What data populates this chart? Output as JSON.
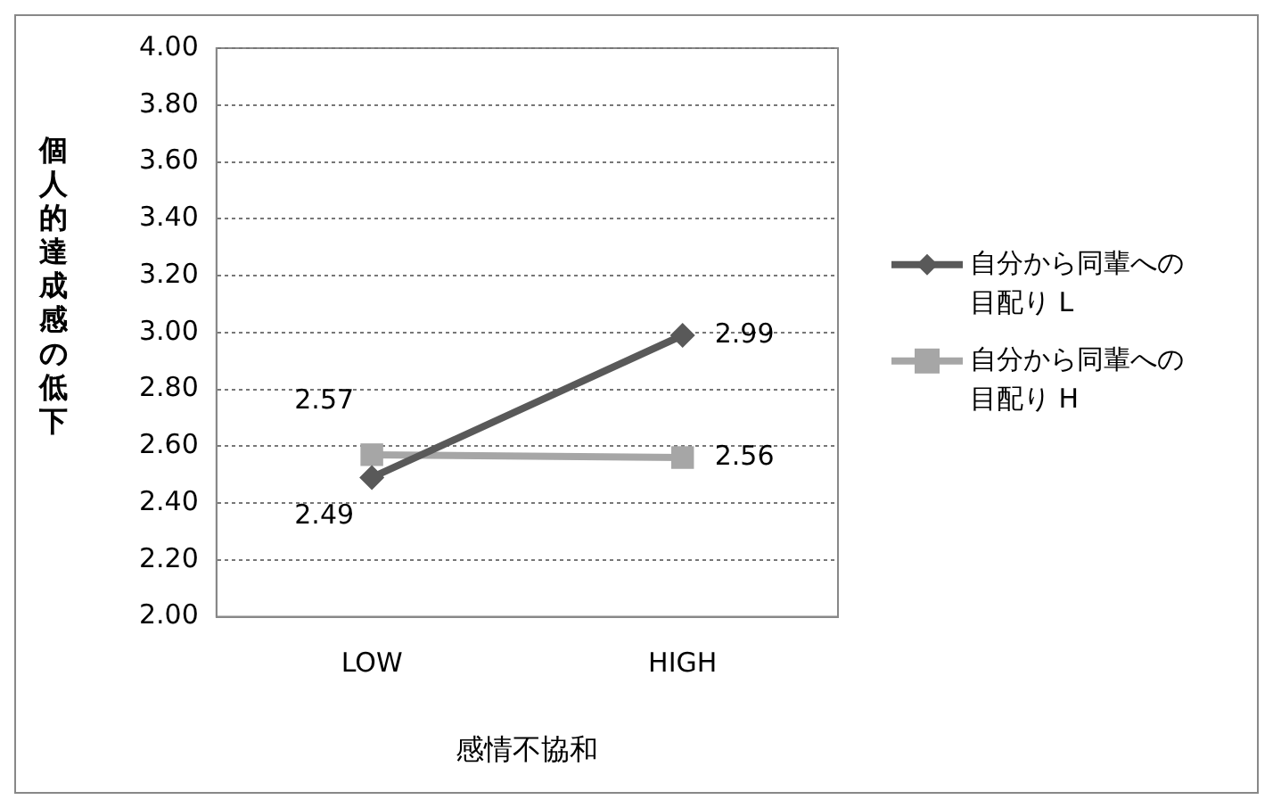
{
  "chart_data": {
    "type": "line",
    "xlabel": "感情不協和",
    "ylabel": "個人的達成感の低下",
    "categories": [
      "LOW",
      "HIGH"
    ],
    "series": [
      {
        "name": "自分から同輩への目配り L",
        "color": "#595959",
        "values": [
          2.49,
          2.99
        ],
        "marker": "diamond"
      },
      {
        "name": "自分から同輩への目配り H",
        "color": "#a6a6a6",
        "values": [
          2.57,
          2.56
        ],
        "marker": "square"
      }
    ],
    "ylim": [
      2,
      4
    ],
    "yticks": [
      {
        "value": 2,
        "label": "2.00"
      },
      {
        "value": 2.2,
        "label": "2.20"
      },
      {
        "value": 2.4,
        "label": "2.40"
      },
      {
        "value": 2.6,
        "label": "2.60"
      },
      {
        "value": 2.8,
        "label": "2.80"
      },
      {
        "value": 3,
        "label": "3.00"
      },
      {
        "value": 3.2,
        "label": "3.20"
      },
      {
        "value": 3.4,
        "label": "3.40"
      },
      {
        "value": 3.6,
        "label": "3.60"
      },
      {
        "value": 3.8,
        "label": "3.80"
      },
      {
        "value": 4,
        "label": "4.00"
      }
    ],
    "grid": "y",
    "legend": "right",
    "data_labels": true,
    "line_style": "solid"
  }
}
